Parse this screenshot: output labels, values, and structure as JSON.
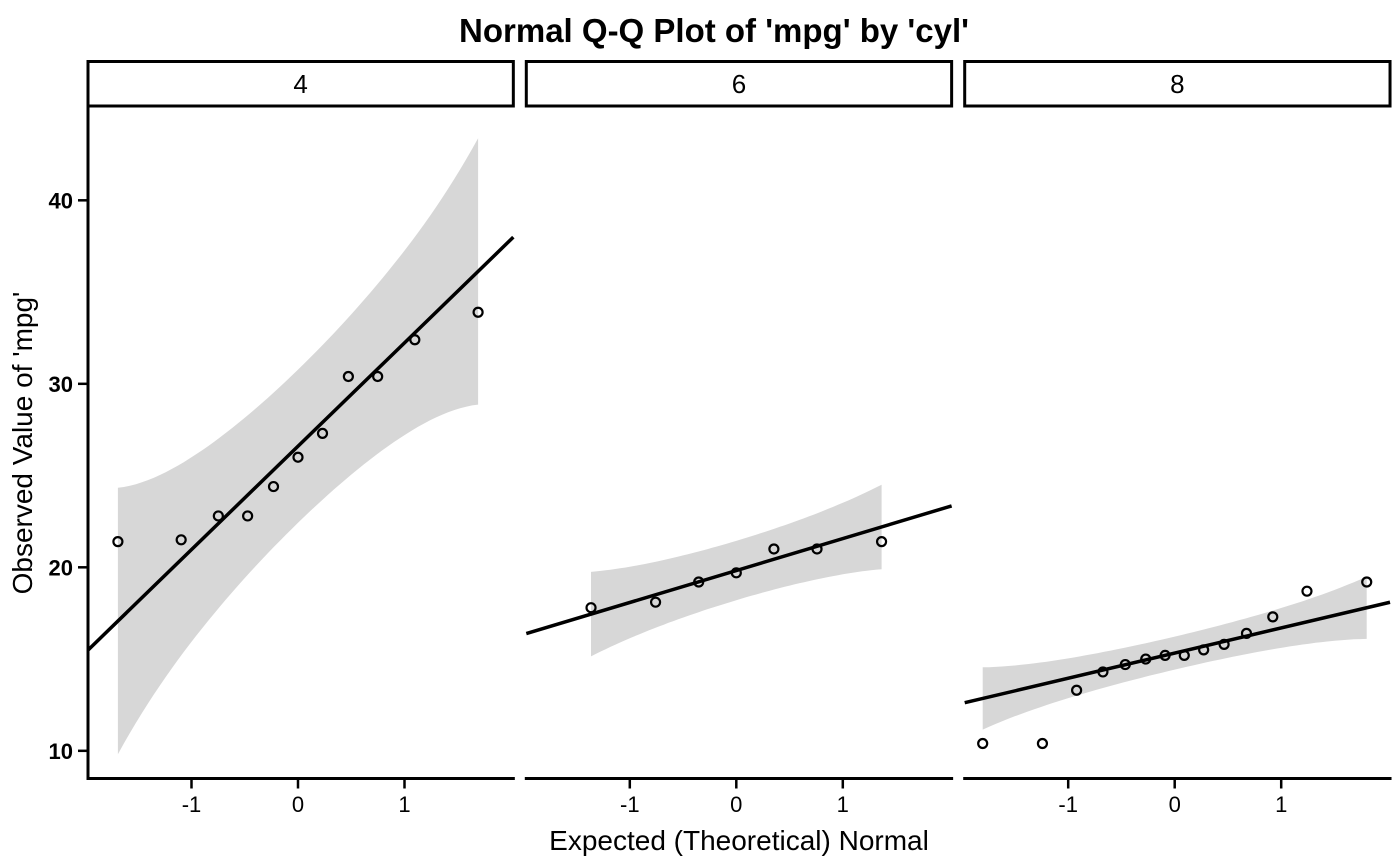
{
  "chart_data": {
    "type": "scatter",
    "subtype": "faceted-normal-qq-plot-with-confidence-band",
    "title": "Normal Q-Q Plot of 'mpg' by 'cyl'",
    "xlabel": "Expected (Theoretical) Normal",
    "ylabel": "Observed Value of 'mpg'",
    "facet_variable": "cyl",
    "sample_variable": "mpg",
    "x_ticks": [
      -1,
      0,
      1
    ],
    "y_ticks": [
      10,
      20,
      30,
      40
    ],
    "xlim": [
      -1.972,
      2.022
    ],
    "ylim": [
      8.5,
      45.1
    ],
    "grid": false,
    "legend_position": "none",
    "confidence_band": {
      "level": 0.95,
      "z": 1.96
    },
    "colors": {
      "point": "#000000",
      "line": "#000000",
      "band": "#d7d7d7",
      "axis": "#000000",
      "strip_border": "#000000",
      "strip_fill": "#ffffff",
      "background": "#ffffff"
    },
    "facets": [
      {
        "label": "4",
        "n": 11,
        "qq_line": {
          "slope": 5.634,
          "intercept": 26.6
        },
        "points": [
          {
            "x": -1.691,
            "y": 21.4
          },
          {
            "x": -1.097,
            "y": 21.5
          },
          {
            "x": -0.748,
            "y": 22.8
          },
          {
            "x": -0.473,
            "y": 22.8
          },
          {
            "x": -0.23,
            "y": 24.4
          },
          {
            "x": 0.0,
            "y": 26.0
          },
          {
            "x": 0.23,
            "y": 27.3
          },
          {
            "x": 0.473,
            "y": 30.4
          },
          {
            "x": 0.748,
            "y": 30.4
          },
          {
            "x": 1.097,
            "y": 32.4
          },
          {
            "x": 1.691,
            "y": 33.9
          }
        ]
      },
      {
        "label": "6",
        "n": 7,
        "qq_line": {
          "slope": 1.742,
          "intercept": 19.825
        },
        "points": [
          {
            "x": -1.364,
            "y": 17.8
          },
          {
            "x": -0.758,
            "y": 18.1
          },
          {
            "x": -0.353,
            "y": 19.2
          },
          {
            "x": 0.0,
            "y": 19.7
          },
          {
            "x": 0.353,
            "y": 21.0
          },
          {
            "x": 0.758,
            "y": 21.0
          },
          {
            "x": 1.364,
            "y": 21.4
          }
        ]
      },
      {
        "label": "8",
        "n": 14,
        "qq_line": {
          "slope": 1.371,
          "intercept": 15.325
        },
        "points": [
          {
            "x": -1.803,
            "y": 10.4
          },
          {
            "x": -1.242,
            "y": 10.4
          },
          {
            "x": -0.921,
            "y": 13.3
          },
          {
            "x": -0.674,
            "y": 14.3
          },
          {
            "x": -0.464,
            "y": 14.7
          },
          {
            "x": -0.272,
            "y": 15.0
          },
          {
            "x": -0.09,
            "y": 15.2
          },
          {
            "x": 0.09,
            "y": 15.2
          },
          {
            "x": 0.272,
            "y": 15.5
          },
          {
            "x": 0.464,
            "y": 15.8
          },
          {
            "x": 0.674,
            "y": 16.4
          },
          {
            "x": 0.921,
            "y": 17.3
          },
          {
            "x": 1.242,
            "y": 18.7
          },
          {
            "x": 1.803,
            "y": 19.2
          }
        ]
      }
    ]
  }
}
